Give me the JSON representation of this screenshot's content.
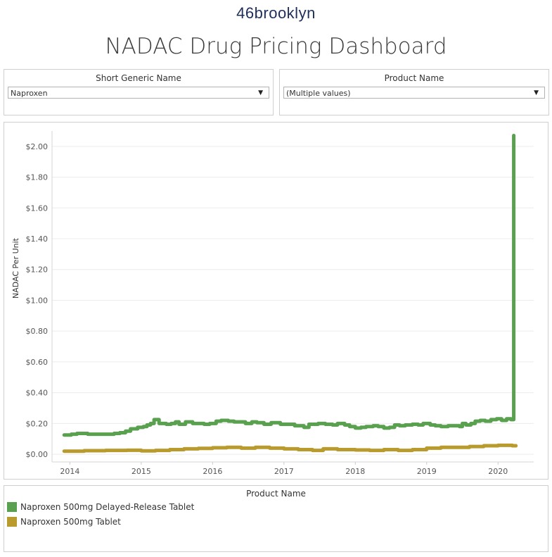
{
  "header": {
    "logo_text": "46brooklyn",
    "title": "NADAC Drug Pricing Dashboard"
  },
  "filters": {
    "generic": {
      "label": "Short Generic Name",
      "value": "Naproxen"
    },
    "product": {
      "label": "Product Name",
      "value": "(Multiple values)"
    }
  },
  "legend": {
    "title": "Product Name",
    "items": [
      {
        "label": "Naproxen 500mg Delayed-Release Tablet",
        "color": "#59a14f"
      },
      {
        "label": "Naproxen 500mg Tablet",
        "color": "#b99a2c"
      }
    ]
  },
  "chart_data": {
    "type": "line",
    "ylabel": "NADAC Per Unit",
    "xlabel": "",
    "ylim": [
      0,
      2.1
    ],
    "xlim": [
      2013.75,
      2020.5
    ],
    "yticks": [
      {
        "v": 0.0,
        "label": "$0.00"
      },
      {
        "v": 0.2,
        "label": "$0.20"
      },
      {
        "v": 0.4,
        "label": "$0.40"
      },
      {
        "v": 0.6,
        "label": "$0.60"
      },
      {
        "v": 0.8,
        "label": "$0.80"
      },
      {
        "v": 1.0,
        "label": "$1.00"
      },
      {
        "v": 1.2,
        "label": "$1.20"
      },
      {
        "v": 1.4,
        "label": "$1.40"
      },
      {
        "v": 1.6,
        "label": "$1.60"
      },
      {
        "v": 1.8,
        "label": "$1.80"
      },
      {
        "v": 2.0,
        "label": "$2.00"
      }
    ],
    "xticks": [
      {
        "v": 2014,
        "label": "2014"
      },
      {
        "v": 2015,
        "label": "2015"
      },
      {
        "v": 2016,
        "label": "2016"
      },
      {
        "v": 2017,
        "label": "2017"
      },
      {
        "v": 2018,
        "label": "2018"
      },
      {
        "v": 2019,
        "label": "2019"
      },
      {
        "v": 2020,
        "label": "2020"
      }
    ],
    "grid": "horizontal",
    "series": [
      {
        "name": "Naproxen 500mg Delayed-Release Tablet",
        "color": "#59a14f",
        "step": true,
        "points": [
          [
            2013.92,
            0.125
          ],
          [
            2014.02,
            0.13
          ],
          [
            2014.1,
            0.135
          ],
          [
            2014.25,
            0.13
          ],
          [
            2014.4,
            0.13
          ],
          [
            2014.55,
            0.13
          ],
          [
            2014.62,
            0.135
          ],
          [
            2014.7,
            0.14
          ],
          [
            2014.78,
            0.15
          ],
          [
            2014.85,
            0.165
          ],
          [
            2014.95,
            0.175
          ],
          [
            2015.03,
            0.18
          ],
          [
            2015.08,
            0.19
          ],
          [
            2015.13,
            0.2
          ],
          [
            2015.18,
            0.225
          ],
          [
            2015.25,
            0.2
          ],
          [
            2015.35,
            0.195
          ],
          [
            2015.42,
            0.2
          ],
          [
            2015.48,
            0.21
          ],
          [
            2015.53,
            0.195
          ],
          [
            2015.62,
            0.21
          ],
          [
            2015.72,
            0.2
          ],
          [
            2015.8,
            0.2
          ],
          [
            2015.88,
            0.195
          ],
          [
            2015.96,
            0.2
          ],
          [
            2016.05,
            0.215
          ],
          [
            2016.12,
            0.22
          ],
          [
            2016.22,
            0.215
          ],
          [
            2016.3,
            0.21
          ],
          [
            2016.38,
            0.21
          ],
          [
            2016.46,
            0.2
          ],
          [
            2016.55,
            0.21
          ],
          [
            2016.62,
            0.205
          ],
          [
            2016.72,
            0.195
          ],
          [
            2016.82,
            0.205
          ],
          [
            2016.95,
            0.195
          ],
          [
            2017.05,
            0.195
          ],
          [
            2017.15,
            0.185
          ],
          [
            2017.28,
            0.175
          ],
          [
            2017.35,
            0.195
          ],
          [
            2017.48,
            0.2
          ],
          [
            2017.58,
            0.195
          ],
          [
            2017.68,
            0.19
          ],
          [
            2017.75,
            0.2
          ],
          [
            2017.85,
            0.19
          ],
          [
            2017.92,
            0.18
          ],
          [
            2018.0,
            0.17
          ],
          [
            2018.08,
            0.175
          ],
          [
            2018.15,
            0.18
          ],
          [
            2018.25,
            0.185
          ],
          [
            2018.32,
            0.18
          ],
          [
            2018.4,
            0.17
          ],
          [
            2018.48,
            0.175
          ],
          [
            2018.55,
            0.19
          ],
          [
            2018.62,
            0.185
          ],
          [
            2018.7,
            0.19
          ],
          [
            2018.8,
            0.195
          ],
          [
            2018.88,
            0.19
          ],
          [
            2018.95,
            0.2
          ],
          [
            2019.05,
            0.19
          ],
          [
            2019.12,
            0.185
          ],
          [
            2019.2,
            0.18
          ],
          [
            2019.3,
            0.185
          ],
          [
            2019.38,
            0.185
          ],
          [
            2019.46,
            0.18
          ],
          [
            2019.5,
            0.2
          ],
          [
            2019.55,
            0.19
          ],
          [
            2019.62,
            0.2
          ],
          [
            2019.68,
            0.215
          ],
          [
            2019.75,
            0.22
          ],
          [
            2019.82,
            0.215
          ],
          [
            2019.9,
            0.225
          ],
          [
            2019.98,
            0.23
          ],
          [
            2020.05,
            0.22
          ],
          [
            2020.12,
            0.23
          ],
          [
            2020.18,
            0.225
          ],
          [
            2020.22,
            2.07
          ]
        ]
      },
      {
        "name": "Naproxen 500mg Tablet",
        "color": "#b99a2c",
        "step": true,
        "points": [
          [
            2013.92,
            0.02
          ],
          [
            2014.2,
            0.023
          ],
          [
            2014.5,
            0.025
          ],
          [
            2014.8,
            0.026
          ],
          [
            2015.0,
            0.022
          ],
          [
            2015.2,
            0.025
          ],
          [
            2015.4,
            0.03
          ],
          [
            2015.6,
            0.035
          ],
          [
            2015.8,
            0.038
          ],
          [
            2016.0,
            0.042
          ],
          [
            2016.2,
            0.045
          ],
          [
            2016.4,
            0.04
          ],
          [
            2016.6,
            0.045
          ],
          [
            2016.8,
            0.04
          ],
          [
            2017.0,
            0.035
          ],
          [
            2017.2,
            0.03
          ],
          [
            2017.4,
            0.025
          ],
          [
            2017.55,
            0.035
          ],
          [
            2017.75,
            0.03
          ],
          [
            2018.0,
            0.028
          ],
          [
            2018.2,
            0.025
          ],
          [
            2018.4,
            0.03
          ],
          [
            2018.6,
            0.025
          ],
          [
            2018.8,
            0.03
          ],
          [
            2019.0,
            0.04
          ],
          [
            2019.2,
            0.045
          ],
          [
            2019.4,
            0.045
          ],
          [
            2019.6,
            0.05
          ],
          [
            2019.8,
            0.055
          ],
          [
            2020.0,
            0.058
          ],
          [
            2020.2,
            0.055
          ]
        ]
      }
    ]
  }
}
